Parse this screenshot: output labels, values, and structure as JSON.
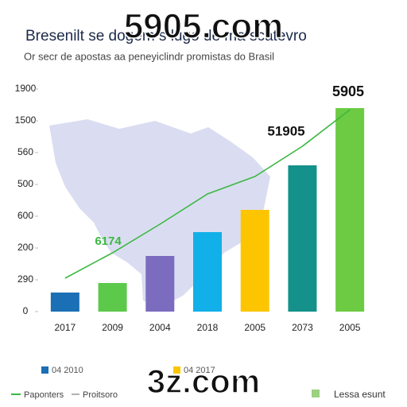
{
  "chart_data": {
    "type": "bar",
    "title": "Bresenilt se dogem s lugo de ma scatevro",
    "subtitle": "Or secr de apostas aa peneyiclindr promistas do Brasil",
    "categories": [
      "2017",
      "2009",
      "2004",
      "2018",
      "2005",
      "2073",
      "2005"
    ],
    "values": [
      0.6,
      0.9,
      1.75,
      2.5,
      3.2,
      4.6,
      6.4
    ],
    "colors": [
      "#1a6fb5",
      "#5dc94b",
      "#7b6cc0",
      "#12b0e8",
      "#fdc500",
      "#13918a",
      "#6ccb42"
    ],
    "line_values": [
      1.05,
      1.85,
      2.75,
      3.7,
      4.25,
      5.2,
      6.35
    ],
    "line_color": "#3cb843",
    "ylim": [
      0,
      7
    ],
    "yticks": [
      {
        "value": 0,
        "label": "0"
      },
      {
        "value": 1,
        "label": "290"
      },
      {
        "value": 2,
        "label": "200"
      },
      {
        "value": 3,
        "label": "600"
      },
      {
        "value": 4,
        "label": "500"
      },
      {
        "value": 5,
        "label": "560"
      },
      {
        "value": 6,
        "label": "1500"
      },
      {
        "value": 7,
        "label": "1900"
      }
    ],
    "annotations": [
      "5905",
      "51905",
      "6174"
    ],
    "legend": [
      {
        "name": "04 2010",
        "color": "#1a6fb5"
      },
      {
        "name": "04 2017",
        "color": "#fdc500"
      }
    ],
    "footer_legend": [
      "Paponters",
      "Proitsoro",
      "Lessa esunt"
    ],
    "watermarks": [
      "5905.com",
      "3z.com"
    ]
  }
}
